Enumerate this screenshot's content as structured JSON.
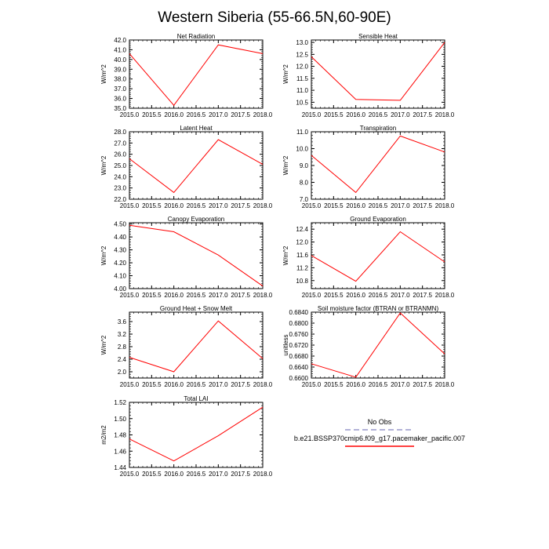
{
  "figure": {
    "title": "Western Siberia (55-66.5N,60-90E)"
  },
  "legend": {
    "entries": [
      {
        "label": "No Obs",
        "color": "#9999cc",
        "dashed": true
      },
      {
        "label": "b.e21.BSSP370cmip6.f09_g17.pacemaker_pacific.007",
        "color": "#ff0000",
        "dashed": false
      }
    ]
  },
  "chart_data": [
    {
      "type": "line",
      "title": "Net Radiation",
      "ylabel": "W/m^2",
      "x": [
        2015,
        2016,
        2017,
        2018
      ],
      "xlim": [
        2015,
        2018
      ],
      "xticks": [
        "2015.0",
        "2015.5",
        "2016.0",
        "2016.5",
        "2017.0",
        "2017.5",
        "2018.0"
      ],
      "ylim": [
        35.0,
        42.0
      ],
      "yticks": [
        "35.0",
        "36.0",
        "37.0",
        "38.0",
        "39.0",
        "40.0",
        "41.0",
        "42.0"
      ],
      "series": [
        {
          "values": [
            40.6,
            35.3,
            41.5,
            40.6
          ],
          "color": "#ff0000"
        }
      ]
    },
    {
      "type": "line",
      "title": "Sensible Heat",
      "ylabel": "W/m^2",
      "x": [
        2015,
        2016,
        2017,
        2018
      ],
      "xlim": [
        2015,
        2018
      ],
      "xticks": [
        "2015.0",
        "2015.5",
        "2016.0",
        "2016.5",
        "2017.0",
        "2017.5",
        "2018.0"
      ],
      "ylim": [
        10.25,
        13.1
      ],
      "yticks": [
        "10.5",
        "11.0",
        "11.5",
        "12.0",
        "12.5",
        "13.0"
      ],
      "series": [
        {
          "values": [
            12.4,
            10.62,
            10.58,
            13.0
          ],
          "color": "#ff0000"
        }
      ]
    },
    {
      "type": "line",
      "title": "Latent Heat",
      "ylabel": "W/m^2",
      "x": [
        2015,
        2016,
        2017,
        2018
      ],
      "xlim": [
        2015,
        2018
      ],
      "xticks": [
        "2015.0",
        "2015.5",
        "2016.0",
        "2016.5",
        "2017.0",
        "2017.5",
        "2018.0"
      ],
      "ylim": [
        22.0,
        28.0
      ],
      "yticks": [
        "22.0",
        "23.0",
        "24.0",
        "25.0",
        "26.0",
        "27.0",
        "28.0"
      ],
      "series": [
        {
          "values": [
            25.6,
            22.6,
            27.3,
            25.1
          ],
          "color": "#ff0000"
        }
      ]
    },
    {
      "type": "line",
      "title": "Transpiration",
      "ylabel": "W/m^2",
      "x": [
        2015,
        2016,
        2017,
        2018
      ],
      "xlim": [
        2015,
        2018
      ],
      "xticks": [
        "2015.0",
        "2015.5",
        "2016.0",
        "2016.5",
        "2017.0",
        "2017.5",
        "2018.0"
      ],
      "ylim": [
        7.0,
        11.0
      ],
      "yticks": [
        "7.0",
        "8.0",
        "9.0",
        "10.0",
        "11.0"
      ],
      "series": [
        {
          "values": [
            9.6,
            7.4,
            10.75,
            9.8
          ],
          "color": "#ff0000"
        }
      ]
    },
    {
      "type": "line",
      "title": "Canopy Evaporation",
      "ylabel": "W/m^2",
      "x": [
        2015,
        2016,
        2017,
        2018
      ],
      "xlim": [
        2015,
        2018
      ],
      "xticks": [
        "2015.0",
        "2015.5",
        "2016.0",
        "2016.5",
        "2017.0",
        "2017.5",
        "2018.0"
      ],
      "ylim": [
        4.0,
        4.51
      ],
      "yticks": [
        "4.00",
        "4.10",
        "4.20",
        "4.30",
        "4.40",
        "4.50"
      ],
      "series": [
        {
          "values": [
            4.49,
            4.44,
            4.26,
            4.02
          ],
          "color": "#ff0000"
        }
      ]
    },
    {
      "type": "line",
      "title": "Ground Evaporation",
      "ylabel": "W/m^2",
      "x": [
        2015,
        2016,
        2017,
        2018
      ],
      "xlim": [
        2015,
        2018
      ],
      "xticks": [
        "2015.0",
        "2015.5",
        "2016.0",
        "2016.5",
        "2017.0",
        "2017.5",
        "2018.0"
      ],
      "ylim": [
        10.55,
        12.6
      ],
      "yticks": [
        "10.8",
        "11.2",
        "11.6",
        "12.0",
        "12.4"
      ],
      "series": [
        {
          "values": [
            11.58,
            10.78,
            12.32,
            11.38
          ],
          "color": "#ff0000"
        }
      ]
    },
    {
      "type": "line",
      "title": "Ground Heat + Snow Melt",
      "ylabel": "W/m^2",
      "x": [
        2015,
        2016,
        2017,
        2018
      ],
      "xlim": [
        2015,
        2018
      ],
      "xticks": [
        "2015.0",
        "2015.5",
        "2016.0",
        "2016.5",
        "2017.0",
        "2017.5",
        "2018.0"
      ],
      "ylim": [
        1.8,
        3.9
      ],
      "yticks": [
        "2.0",
        "2.4",
        "2.8",
        "3.2",
        "3.6"
      ],
      "series": [
        {
          "values": [
            2.46,
            2.0,
            3.62,
            2.42
          ],
          "color": "#ff0000"
        }
      ]
    },
    {
      "type": "line",
      "title": "Soil moisture factor (BTRAN or BTRANMN)",
      "ylabel": "unitless",
      "x": [
        2015,
        2016,
        2017,
        2018
      ],
      "xlim": [
        2015,
        2018
      ],
      "xticks": [
        "2015.0",
        "2015.5",
        "2016.0",
        "2016.5",
        "2017.0",
        "2017.5",
        "2018.0"
      ],
      "ylim": [
        0.66,
        0.684
      ],
      "yticks": [
        "0.6600",
        "0.6640",
        "0.6680",
        "0.6720",
        "0.6760",
        "0.6800",
        "0.6840"
      ],
      "series": [
        {
          "values": [
            0.6652,
            0.6603,
            0.6837,
            0.6688
          ],
          "color": "#ff0000"
        }
      ]
    },
    {
      "type": "line",
      "title": "Total LAI",
      "ylabel": "m2/m2",
      "x": [
        2015,
        2016,
        2017,
        2018
      ],
      "xlim": [
        2015,
        2018
      ],
      "xticks": [
        "2015.0",
        "2015.5",
        "2016.0",
        "2016.5",
        "2017.0",
        "2017.5",
        "2018.0"
      ],
      "ylim": [
        1.44,
        1.52
      ],
      "yticks": [
        "1.44",
        "1.46",
        "1.48",
        "1.50",
        "1.52"
      ],
      "series": [
        {
          "values": [
            1.475,
            1.448,
            1.479,
            1.514
          ],
          "color": "#ff0000"
        }
      ]
    }
  ]
}
